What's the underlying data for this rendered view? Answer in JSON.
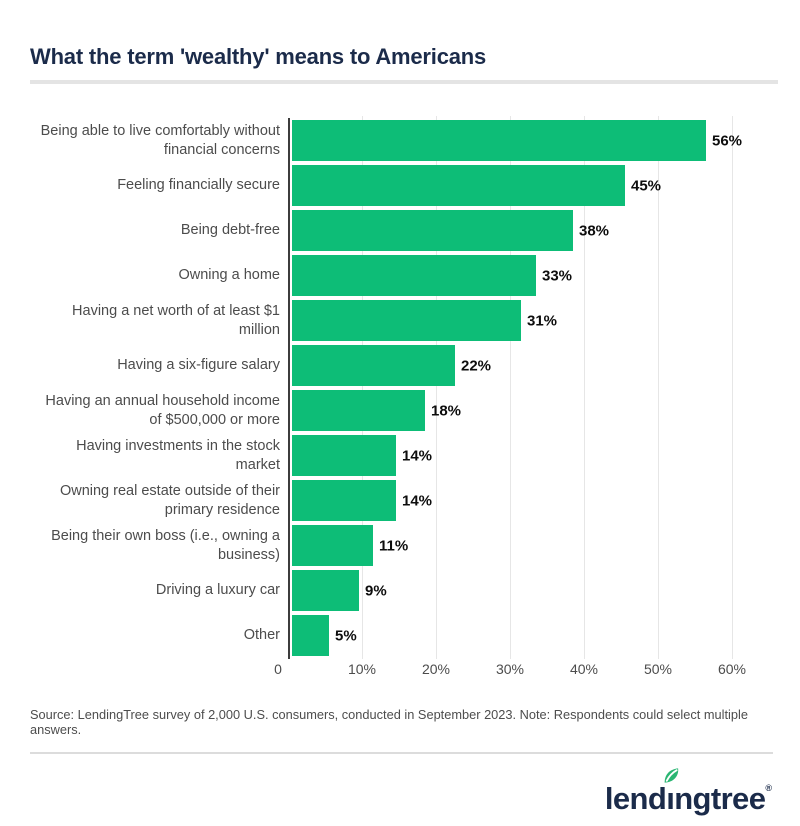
{
  "page": {
    "title": "What the term 'wealthy' means to Americans"
  },
  "chart_data": {
    "type": "bar",
    "orientation": "horizontal",
    "title": "What the term 'wealthy' means to Americans",
    "categories": [
      "Being able to live comfortably without financial concerns",
      "Feeling financially secure",
      "Being debt-free",
      "Owning a home",
      "Having a net worth of at least $1 million",
      "Having a six-figure salary",
      "Having an annual household income of $500,000 or more",
      "Having investments in the stock market",
      "Owning real estate outside of their primary residence",
      "Being their own boss (i.e., owning a business)",
      "Driving a luxury car",
      "Other"
    ],
    "values": [
      56,
      45,
      38,
      33,
      31,
      22,
      18,
      14,
      14,
      11,
      9,
      5
    ],
    "value_labels": [
      "56%",
      "45%",
      "38%",
      "33%",
      "31%",
      "22%",
      "18%",
      "14%",
      "14%",
      "11%",
      "9%",
      "5%"
    ],
    "x_ticks": [
      {
        "value": 0,
        "label": "0"
      },
      {
        "value": 10,
        "label": "10%"
      },
      {
        "value": 20,
        "label": "20%"
      },
      {
        "value": 30,
        "label": "30%"
      },
      {
        "value": 40,
        "label": "40%"
      },
      {
        "value": 50,
        "label": "50%"
      },
      {
        "value": 60,
        "label": "60%"
      }
    ],
    "xlim": [
      0,
      60
    ],
    "grid": true,
    "legend": "none",
    "bar_color": "#0DBD77"
  },
  "footer": {
    "source_note": "Source: LendingTree survey of 2,000 U.S. consumers, conducted in September 2023. Note: Respondents could select multiple answers.",
    "logo": {
      "part1": "lend",
      "dotless_i": "ı",
      "part2": "ngtree",
      "registered": "®"
    }
  },
  "colors": {
    "bar_green": "#0DBD77",
    "leaf_green": "#2BB673",
    "navy": "#1B2B4A",
    "label_gray": "#4C4C4C",
    "grid_gray": "#E6E6E6",
    "axis_dark": "#3C3C3C"
  }
}
